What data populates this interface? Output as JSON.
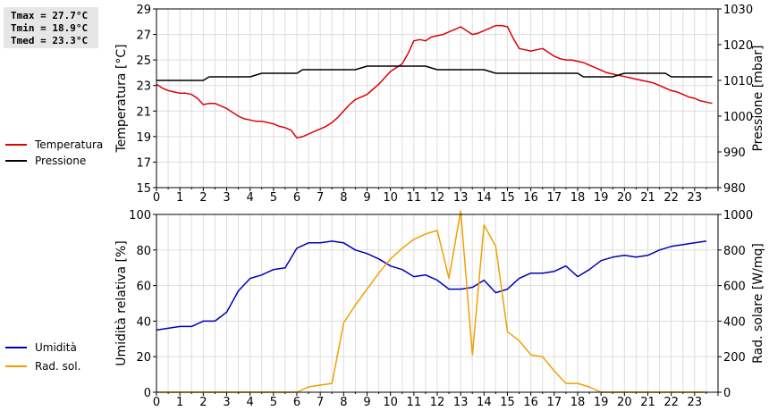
{
  "stats": {
    "tmax": "Tmax = 27.7°C",
    "tmin": "Tmin = 18.9°C",
    "tmed": "Tmed = 23.3°C"
  },
  "legend_top": [
    {
      "label": "Temperatura",
      "color": "#dd0000"
    },
    {
      "label": "Pressione",
      "color": "#000000"
    }
  ],
  "legend_bottom": [
    {
      "label": "Umidità",
      "color": "#0000bb"
    },
    {
      "label": "Rad. sol.",
      "color": "#f0a000"
    }
  ],
  "chart_data": [
    {
      "type": "line",
      "x_ticks": [
        "0",
        "1",
        "2",
        "3",
        "4",
        "5",
        "6",
        "7",
        "8",
        "9",
        "10",
        "11",
        "12",
        "13",
        "14",
        "15",
        "16",
        "17",
        "18",
        "19",
        "20",
        "21",
        "22",
        "23"
      ],
      "xlim": [
        0,
        24
      ],
      "grid": true,
      "y_left": {
        "label": "Temperatura [°C]",
        "lim": [
          15,
          29
        ],
        "ticks": [
          "15",
          "17",
          "19",
          "21",
          "23",
          "25",
          "27",
          "29"
        ]
      },
      "y_right": {
        "label": "Pressione [mbar]",
        "lim": [
          980,
          1030
        ],
        "ticks": [
          "980",
          "990",
          "1000",
          "1010",
          "1020",
          "1030"
        ]
      },
      "series": [
        {
          "name": "Temperatura",
          "axis": "left",
          "color": "#dd0000",
          "x": [
            0,
            0.25,
            0.5,
            0.75,
            1,
            1.25,
            1.5,
            1.75,
            2,
            2.25,
            2.5,
            2.75,
            3,
            3.25,
            3.5,
            3.75,
            4,
            4.25,
            4.5,
            4.75,
            5,
            5.25,
            5.5,
            5.75,
            6,
            6.25,
            6.5,
            6.75,
            7,
            7.25,
            7.5,
            7.75,
            8,
            8.25,
            8.5,
            8.75,
            9,
            9.25,
            9.5,
            9.75,
            10,
            10.25,
            10.5,
            10.75,
            11,
            11.25,
            11.5,
            11.75,
            12,
            12.25,
            12.5,
            12.75,
            13,
            13.25,
            13.5,
            13.75,
            14,
            14.25,
            14.5,
            14.75,
            15,
            15.25,
            15.5,
            15.75,
            16,
            16.25,
            16.5,
            16.75,
            17,
            17.25,
            17.5,
            17.75,
            18,
            18.25,
            18.5,
            18.75,
            19,
            19.25,
            19.5,
            19.75,
            20,
            20.25,
            20.5,
            20.75,
            21,
            21.25,
            21.5,
            21.75,
            22,
            22.25,
            22.5,
            22.75,
            23,
            23.25,
            23.5,
            23.75
          ],
          "y": [
            23.1,
            22.8,
            22.6,
            22.5,
            22.4,
            22.4,
            22.3,
            22.0,
            21.5,
            21.6,
            21.6,
            21.4,
            21.2,
            20.9,
            20.6,
            20.4,
            20.3,
            20.2,
            20.2,
            20.1,
            20.0,
            19.8,
            19.7,
            19.5,
            18.9,
            19.0,
            19.2,
            19.4,
            19.6,
            19.8,
            20.1,
            20.5,
            21.0,
            21.5,
            21.9,
            22.1,
            22.3,
            22.7,
            23.1,
            23.6,
            24.1,
            24.4,
            24.7,
            25.5,
            26.5,
            26.6,
            26.5,
            26.8,
            26.9,
            27.0,
            27.2,
            27.4,
            27.6,
            27.3,
            27.0,
            27.1,
            27.3,
            27.5,
            27.7,
            27.7,
            27.6,
            26.7,
            25.9,
            25.8,
            25.7,
            25.8,
            25.9,
            25.6,
            25.3,
            25.1,
            25.0,
            25.0,
            24.9,
            24.8,
            24.6,
            24.4,
            24.2,
            24.0,
            23.9,
            23.8,
            23.7,
            23.6,
            23.5,
            23.4,
            23.3,
            23.2,
            23.0,
            22.8,
            22.6,
            22.5,
            22.3,
            22.1,
            22.0,
            21.8,
            21.7,
            21.6
          ]
        },
        {
          "name": "Pressione",
          "axis": "right",
          "color": "#000000",
          "x": [
            0,
            2,
            2.25,
            4,
            4.5,
            6,
            6.25,
            8.5,
            9,
            11.5,
            12,
            14,
            14.5,
            18,
            18.25,
            19.5,
            20,
            21.75,
            22,
            23.75
          ],
          "y": [
            1010,
            1010,
            1011,
            1011,
            1012,
            1012,
            1013,
            1013,
            1014,
            1014,
            1013,
            1013,
            1012,
            1012,
            1011,
            1011,
            1012,
            1012,
            1011,
            1011
          ]
        }
      ]
    },
    {
      "type": "line",
      "x_ticks": [
        "0",
        "1",
        "2",
        "3",
        "4",
        "5",
        "6",
        "7",
        "8",
        "9",
        "10",
        "11",
        "12",
        "13",
        "14",
        "15",
        "16",
        "17",
        "18",
        "19",
        "20",
        "21",
        "22",
        "23"
      ],
      "xlim": [
        0,
        24
      ],
      "grid": true,
      "y_left": {
        "label": "Umidità relativa [%]",
        "lim": [
          0,
          100
        ],
        "ticks": [
          "0",
          "20",
          "40",
          "60",
          "80",
          "100"
        ]
      },
      "y_right": {
        "label": "Rad. solare [W/mq]",
        "lim": [
          0,
          1000
        ],
        "ticks": [
          "0",
          "200",
          "400",
          "600",
          "800",
          "1000"
        ]
      },
      "series": [
        {
          "name": "Umidità",
          "axis": "left",
          "color": "#0000bb",
          "x": [
            0,
            0.5,
            1,
            1.5,
            2,
            2.5,
            3,
            3.5,
            4,
            4.5,
            5,
            5.5,
            6,
            6.5,
            7,
            7.5,
            8,
            8.5,
            9,
            9.5,
            10,
            10.5,
            11,
            11.5,
            12,
            12.5,
            13,
            13.5,
            14,
            14.5,
            15,
            15.5,
            16,
            16.5,
            17,
            17.5,
            18,
            18.5,
            19,
            19.5,
            20,
            20.5,
            21,
            21.5,
            22,
            22.5,
            23,
            23.5
          ],
          "y": [
            35,
            36,
            37,
            37,
            40,
            40,
            45,
            57,
            64,
            66,
            69,
            70,
            81,
            84,
            84,
            85,
            84,
            80,
            78,
            75,
            71,
            69,
            65,
            66,
            63,
            58,
            58,
            59,
            63,
            56,
            58,
            64,
            67,
            67,
            68,
            71,
            65,
            69,
            74,
            76,
            77,
            76,
            77,
            80,
            82,
            83,
            84,
            85
          ]
        },
        {
          "name": "Rad. sol.",
          "axis": "right",
          "color": "#f0a000",
          "x": [
            0,
            6,
            6.5,
            7,
            7.5,
            8,
            8.5,
            9,
            9.5,
            10,
            10.5,
            11,
            11.5,
            12,
            12.5,
            13,
            13.5,
            14,
            14.5,
            15,
            15.5,
            16,
            16.5,
            17,
            17.5,
            18,
            18.5,
            19,
            19.5,
            20,
            20.5,
            21,
            21.5,
            22,
            22.5,
            23,
            23.5
          ],
          "y": [
            0,
            0,
            30,
            40,
            50,
            390,
            490,
            580,
            670,
            750,
            810,
            860,
            890,
            910,
            640,
            1020,
            210,
            940,
            820,
            340,
            290,
            210,
            200,
            120,
            50,
            50,
            30,
            0,
            0,
            0,
            0,
            0,
            0,
            0,
            0,
            0,
            0
          ]
        }
      ]
    }
  ]
}
